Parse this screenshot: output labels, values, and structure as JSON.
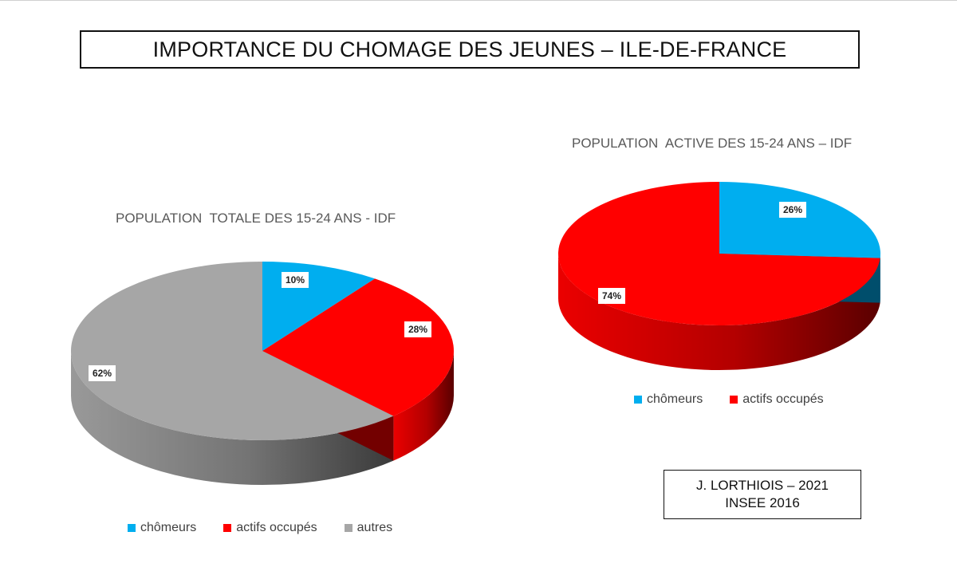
{
  "main_title": "IMPORTANCE DU CHOMAGE DES JEUNES – ILE-DE-FRANCE",
  "chart_data": [
    {
      "type": "pie",
      "title": "POPULATION  TOTALE DES 15-24 ANS - IDF",
      "categories": [
        "chômeurs",
        "actifs occupés",
        "autres"
      ],
      "values": [
        10,
        28,
        62
      ],
      "data_labels": [
        "10%",
        "28%",
        "62%"
      ],
      "colors": [
        "#00aeef",
        "#ff0000",
        "#a6a6a6"
      ],
      "style": "3d",
      "legend": "bottom"
    },
    {
      "type": "pie",
      "title": "POPULATION  ACTIVE DES 15-24 ANS – IDF",
      "categories": [
        "chômeurs",
        "actifs occupés"
      ],
      "values": [
        26,
        74
      ],
      "data_labels": [
        "26%",
        "74%"
      ],
      "colors": [
        "#00aeef",
        "#ff0000"
      ],
      "style": "3d",
      "legend": "bottom"
    }
  ],
  "credit": {
    "line1": "J. LORTHIOIS – 2021",
    "line2": "INSEE 2016"
  }
}
